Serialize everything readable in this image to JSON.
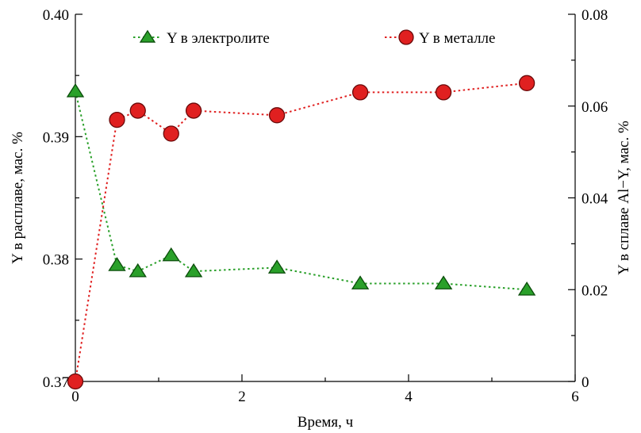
{
  "chart_data": {
    "type": "line",
    "title": "",
    "xlabel": "Время, ч",
    "ylabel_left": "Y в расплаве, мас. %",
    "ylabel_right": "Y в сплаве Al−Y, мас. %",
    "xlim": [
      0,
      6
    ],
    "ylim_left": [
      0.37,
      0.4
    ],
    "ylim_right": [
      0,
      0.08
    ],
    "xticks": [
      "0",
      "2",
      "4",
      "6"
    ],
    "yticks_left": [
      "0.37",
      "0.38",
      "0.39",
      "0.40"
    ],
    "yticks_right": [
      "0",
      "0.02",
      "0.04",
      "0.06",
      "0.08"
    ],
    "grid": false,
    "legend_position": "top",
    "series": [
      {
        "name": "Y в электролите",
        "axis": "left",
        "marker": "triangle",
        "color": "#2aa02a",
        "x": [
          0,
          0.5,
          0.75,
          1.15,
          1.42,
          2.42,
          3.42,
          4.42,
          5.42
        ],
        "y": [
          0.3937,
          0.3795,
          0.379,
          0.3803,
          0.379,
          0.3793,
          0.378,
          0.378,
          0.3775
        ]
      },
      {
        "name": "Y в металле",
        "axis": "right",
        "marker": "circle",
        "color": "#e02020",
        "x": [
          0,
          0.5,
          0.75,
          1.15,
          1.42,
          2.42,
          3.42,
          4.42,
          5.42
        ],
        "y": [
          0,
          0.057,
          0.059,
          0.054,
          0.059,
          0.058,
          0.063,
          0.063,
          0.065
        ]
      }
    ]
  }
}
